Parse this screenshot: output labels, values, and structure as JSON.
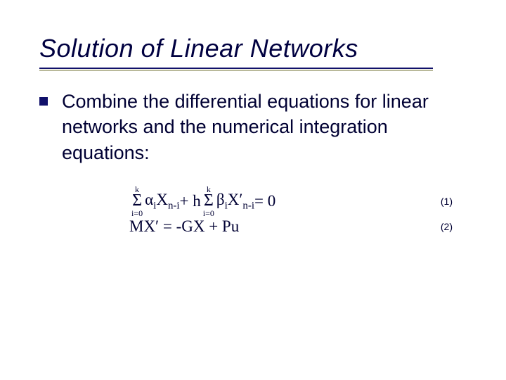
{
  "slide": {
    "title": "Solution of Linear Networks",
    "bullet_text": "Combine the differential equations for linear networks and the numerical integration equations:",
    "bullet_color": "#10106a",
    "underline_color": "#10106a",
    "underline_shadow": "#b9b99a",
    "text_color": "#000033",
    "background_color": "#ffffff",
    "title_fontsize": 36,
    "body_fontsize": 27,
    "eq_fontsize": 23,
    "eqnum_fontsize": 14
  },
  "equations": {
    "eq1": {
      "sigma1_top": "k",
      "sigma1_sym": "Σ",
      "sigma1_bot": "i=0",
      "term1": "α",
      "term1_sub": "i",
      "term1_X": "X",
      "term1_Xsub": "n-i",
      "plus_h": " + h ",
      "sigma2_top": "k",
      "sigma2_sym": "Σ",
      "sigma2_bot": "i=0",
      "term2": "β",
      "term2_sub": "i",
      "term2_X": "X′",
      "term2_Xsub": "n-i",
      "rhs": " = 0",
      "number": "(1)"
    },
    "eq2": {
      "text": "MX′ = -GX + Pu",
      "number": "(2)"
    }
  }
}
